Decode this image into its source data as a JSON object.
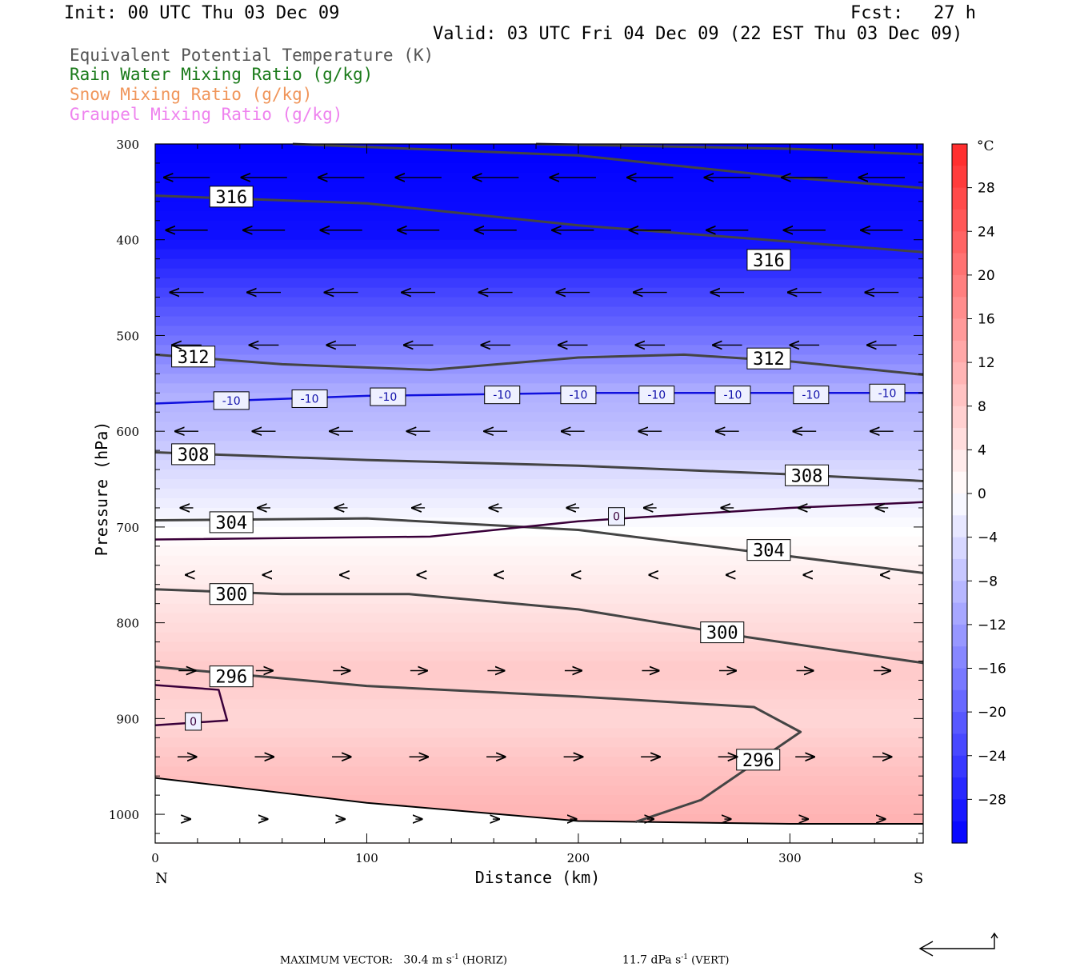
{
  "header": {
    "init": "Init: 00 UTC Thu 03 Dec 09",
    "fcst_label": "Fcst:",
    "fcst_value": "27 h",
    "valid": "Valid: 03 UTC Fri 04 Dec 09 (22 EST Thu 03 Dec 09)"
  },
  "legend": [
    {
      "text": "Equivalent Potential Temperature (K)",
      "color": "#555555"
    },
    {
      "text": "Rain Water Mixing Ratio (g/kg)",
      "color": "#1a7a1a"
    },
    {
      "text": "Snow Mixing Ratio (g/kg)",
      "color": "#f0955a"
    },
    {
      "text": "Graupel Mixing Ratio (g/kg)",
      "color": "#ee82ee"
    }
  ],
  "footer": {
    "max_label": "MAXIMUM VECTOR:",
    "horiz_value": "30.4 m s",
    "horiz_suffix": " (HORIZ)",
    "vert_value": "11.7 dPa s",
    "vert_suffix": " (VERT)",
    "unit_exp": "-1"
  },
  "chart_data": {
    "type": "cross-section",
    "xlabel": "Distance (km)",
    "ylabel": "Pressure (hPa)",
    "x_ticks": [
      0,
      100,
      200,
      300
    ],
    "x_end_labels": {
      "left": "N",
      "right": "S"
    },
    "xlim": [
      0,
      363
    ],
    "y_ticks": [
      300,
      400,
      500,
      600,
      700,
      800,
      900,
      1000
    ],
    "ylim": [
      1030,
      300
    ],
    "colorbar": {
      "unit": "°C",
      "labels": [
        28,
        24,
        20,
        16,
        12,
        8,
        4,
        0,
        -4,
        -8,
        -12,
        -16,
        -20,
        -24,
        -28
      ],
      "range": [
        -32,
        32
      ]
    },
    "temperature_field_by_pressure": [
      {
        "p": 300,
        "t": -32
      },
      {
        "p": 400,
        "t": -30
      },
      {
        "p": 450,
        "t": -24
      },
      {
        "p": 500,
        "t": -18
      },
      {
        "p": 560,
        "t": -10
      },
      {
        "p": 600,
        "t": -8
      },
      {
        "p": 650,
        "t": -4
      },
      {
        "p": 690,
        "t": -1
      },
      {
        "p": 720,
        "t": 1
      },
      {
        "p": 780,
        "t": 4
      },
      {
        "p": 850,
        "t": 8
      },
      {
        "p": 900,
        "t": 6
      },
      {
        "p": 950,
        "t": 9
      },
      {
        "p": 1020,
        "t": 12
      }
    ],
    "theta_e_contours": [
      {
        "label": "316",
        "points": [
          [
            0,
            354
          ],
          [
            100,
            362
          ],
          [
            200,
            385
          ],
          [
            300,
            402
          ],
          [
            363,
            413
          ]
        ],
        "label_at": [
          [
            36,
            355
          ],
          [
            290,
            421
          ]
        ]
      },
      {
        "label": "316",
        "points": [
          [
            65,
            300
          ],
          [
            200,
            312
          ],
          [
            300,
            335
          ],
          [
            363,
            346
          ]
        ],
        "label_at": []
      },
      {
        "label": "316",
        "points": [
          [
            180,
            300
          ],
          [
            300,
            305
          ],
          [
            363,
            311
          ]
        ],
        "label_at": []
      },
      {
        "label": "312",
        "points": [
          [
            0,
            520
          ],
          [
            60,
            530
          ],
          [
            130,
            536
          ],
          [
            200,
            523
          ],
          [
            250,
            520
          ],
          [
            300,
            527
          ],
          [
            363,
            541
          ]
        ],
        "label_at": [
          [
            18,
            522
          ],
          [
            290,
            524
          ]
        ]
      },
      {
        "label": "308",
        "points": [
          [
            0,
            622
          ],
          [
            100,
            630
          ],
          [
            200,
            636
          ],
          [
            300,
            645
          ],
          [
            363,
            652
          ]
        ],
        "label_at": [
          [
            18,
            624
          ],
          [
            308,
            646
          ]
        ]
      },
      {
        "label": "304",
        "points": [
          [
            0,
            693
          ],
          [
            100,
            691
          ],
          [
            200,
            703
          ],
          [
            280,
            725
          ],
          [
            363,
            748
          ]
        ],
        "label_at": [
          [
            36,
            695
          ],
          [
            290,
            724
          ]
        ]
      },
      {
        "label": "300",
        "points": [
          [
            0,
            765
          ],
          [
            60,
            770
          ],
          [
            120,
            770
          ],
          [
            200,
            786
          ],
          [
            280,
            815
          ],
          [
            363,
            842
          ]
        ],
        "label_at": [
          [
            36,
            770
          ],
          [
            268,
            810
          ]
        ]
      },
      {
        "label": "296",
        "points": [
          [
            0,
            846
          ],
          [
            100,
            866
          ],
          [
            200,
            877
          ],
          [
            283,
            888
          ],
          [
            305,
            914
          ],
          [
            258,
            985
          ],
          [
            227,
            1008
          ]
        ],
        "label_at": [
          [
            36,
            856
          ],
          [
            285,
            943
          ]
        ]
      }
    ],
    "isotherms": [
      {
        "label": "-10",
        "points": [
          [
            0,
            571
          ],
          [
            100,
            563
          ],
          [
            200,
            560
          ],
          [
            363,
            560
          ]
        ],
        "label_at": [
          [
            36,
            568
          ],
          [
            73,
            566
          ],
          [
            110,
            564
          ],
          [
            164,
            562
          ],
          [
            200,
            562
          ],
          [
            237,
            562
          ],
          [
            273,
            562
          ],
          [
            310,
            562
          ],
          [
            346,
            560
          ]
        ]
      },
      {
        "label": "0",
        "points": [
          [
            0,
            713
          ],
          [
            130,
            710
          ],
          [
            200,
            694
          ],
          [
            300,
            680
          ],
          [
            363,
            674
          ]
        ],
        "label_at": [
          [
            218,
            689
          ]
        ]
      },
      {
        "label": "0",
        "points": [
          [
            0,
            865
          ],
          [
            30,
            870
          ],
          [
            34,
            902
          ],
          [
            0,
            907
          ]
        ],
        "label_at": [
          [
            18,
            903
          ]
        ]
      }
    ],
    "terrain_surface": [
      [
        0,
        962
      ],
      [
        100,
        988
      ],
      [
        200,
        1007
      ],
      [
        300,
        1010
      ],
      [
        363,
        1010
      ]
    ],
    "wind_vectors": [
      {
        "p": 335,
        "u": -22,
        "w": 0
      },
      {
        "p": 390,
        "u": -20,
        "w": 0
      },
      {
        "p": 455,
        "u": -16,
        "w": 0
      },
      {
        "p": 510,
        "u": -14,
        "w": 0
      },
      {
        "p": 600,
        "u": -11,
        "w": 0
      },
      {
        "p": 680,
        "u": -6,
        "w": 0
      },
      {
        "p": 750,
        "u": -1,
        "w": 0
      },
      {
        "p": 850,
        "u": 8,
        "w": 0
      },
      {
        "p": 940,
        "u": 9,
        "w": 0
      },
      {
        "p": 1005,
        "u": 3,
        "w": 0
      }
    ],
    "max_vector": {
      "horiz": 30.4,
      "vert": 11.7
    }
  }
}
